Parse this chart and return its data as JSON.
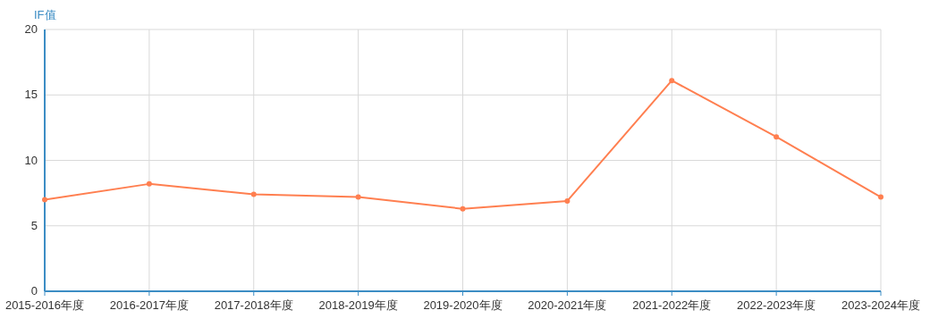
{
  "chart_data": {
    "type": "line",
    "ylabel": "IF值",
    "categories": [
      "2015-2016年度",
      "2016-2017年度",
      "2017-2018年度",
      "2018-2019年度",
      "2019-2020年度",
      "2020-2021年度",
      "2021-2022年度",
      "2022-2023年度",
      "2023-2024年度"
    ],
    "series": [
      {
        "color": "#ff7f50",
        "values": [
          7.0,
          8.2,
          7.4,
          7.2,
          6.3,
          6.9,
          16.1,
          11.8,
          7.2
        ]
      }
    ],
    "ylim": [
      0,
      20
    ],
    "yticks": [
      0,
      5,
      10,
      15,
      20
    ],
    "grid": true,
    "marker": "circle",
    "line_style": "solid"
  }
}
